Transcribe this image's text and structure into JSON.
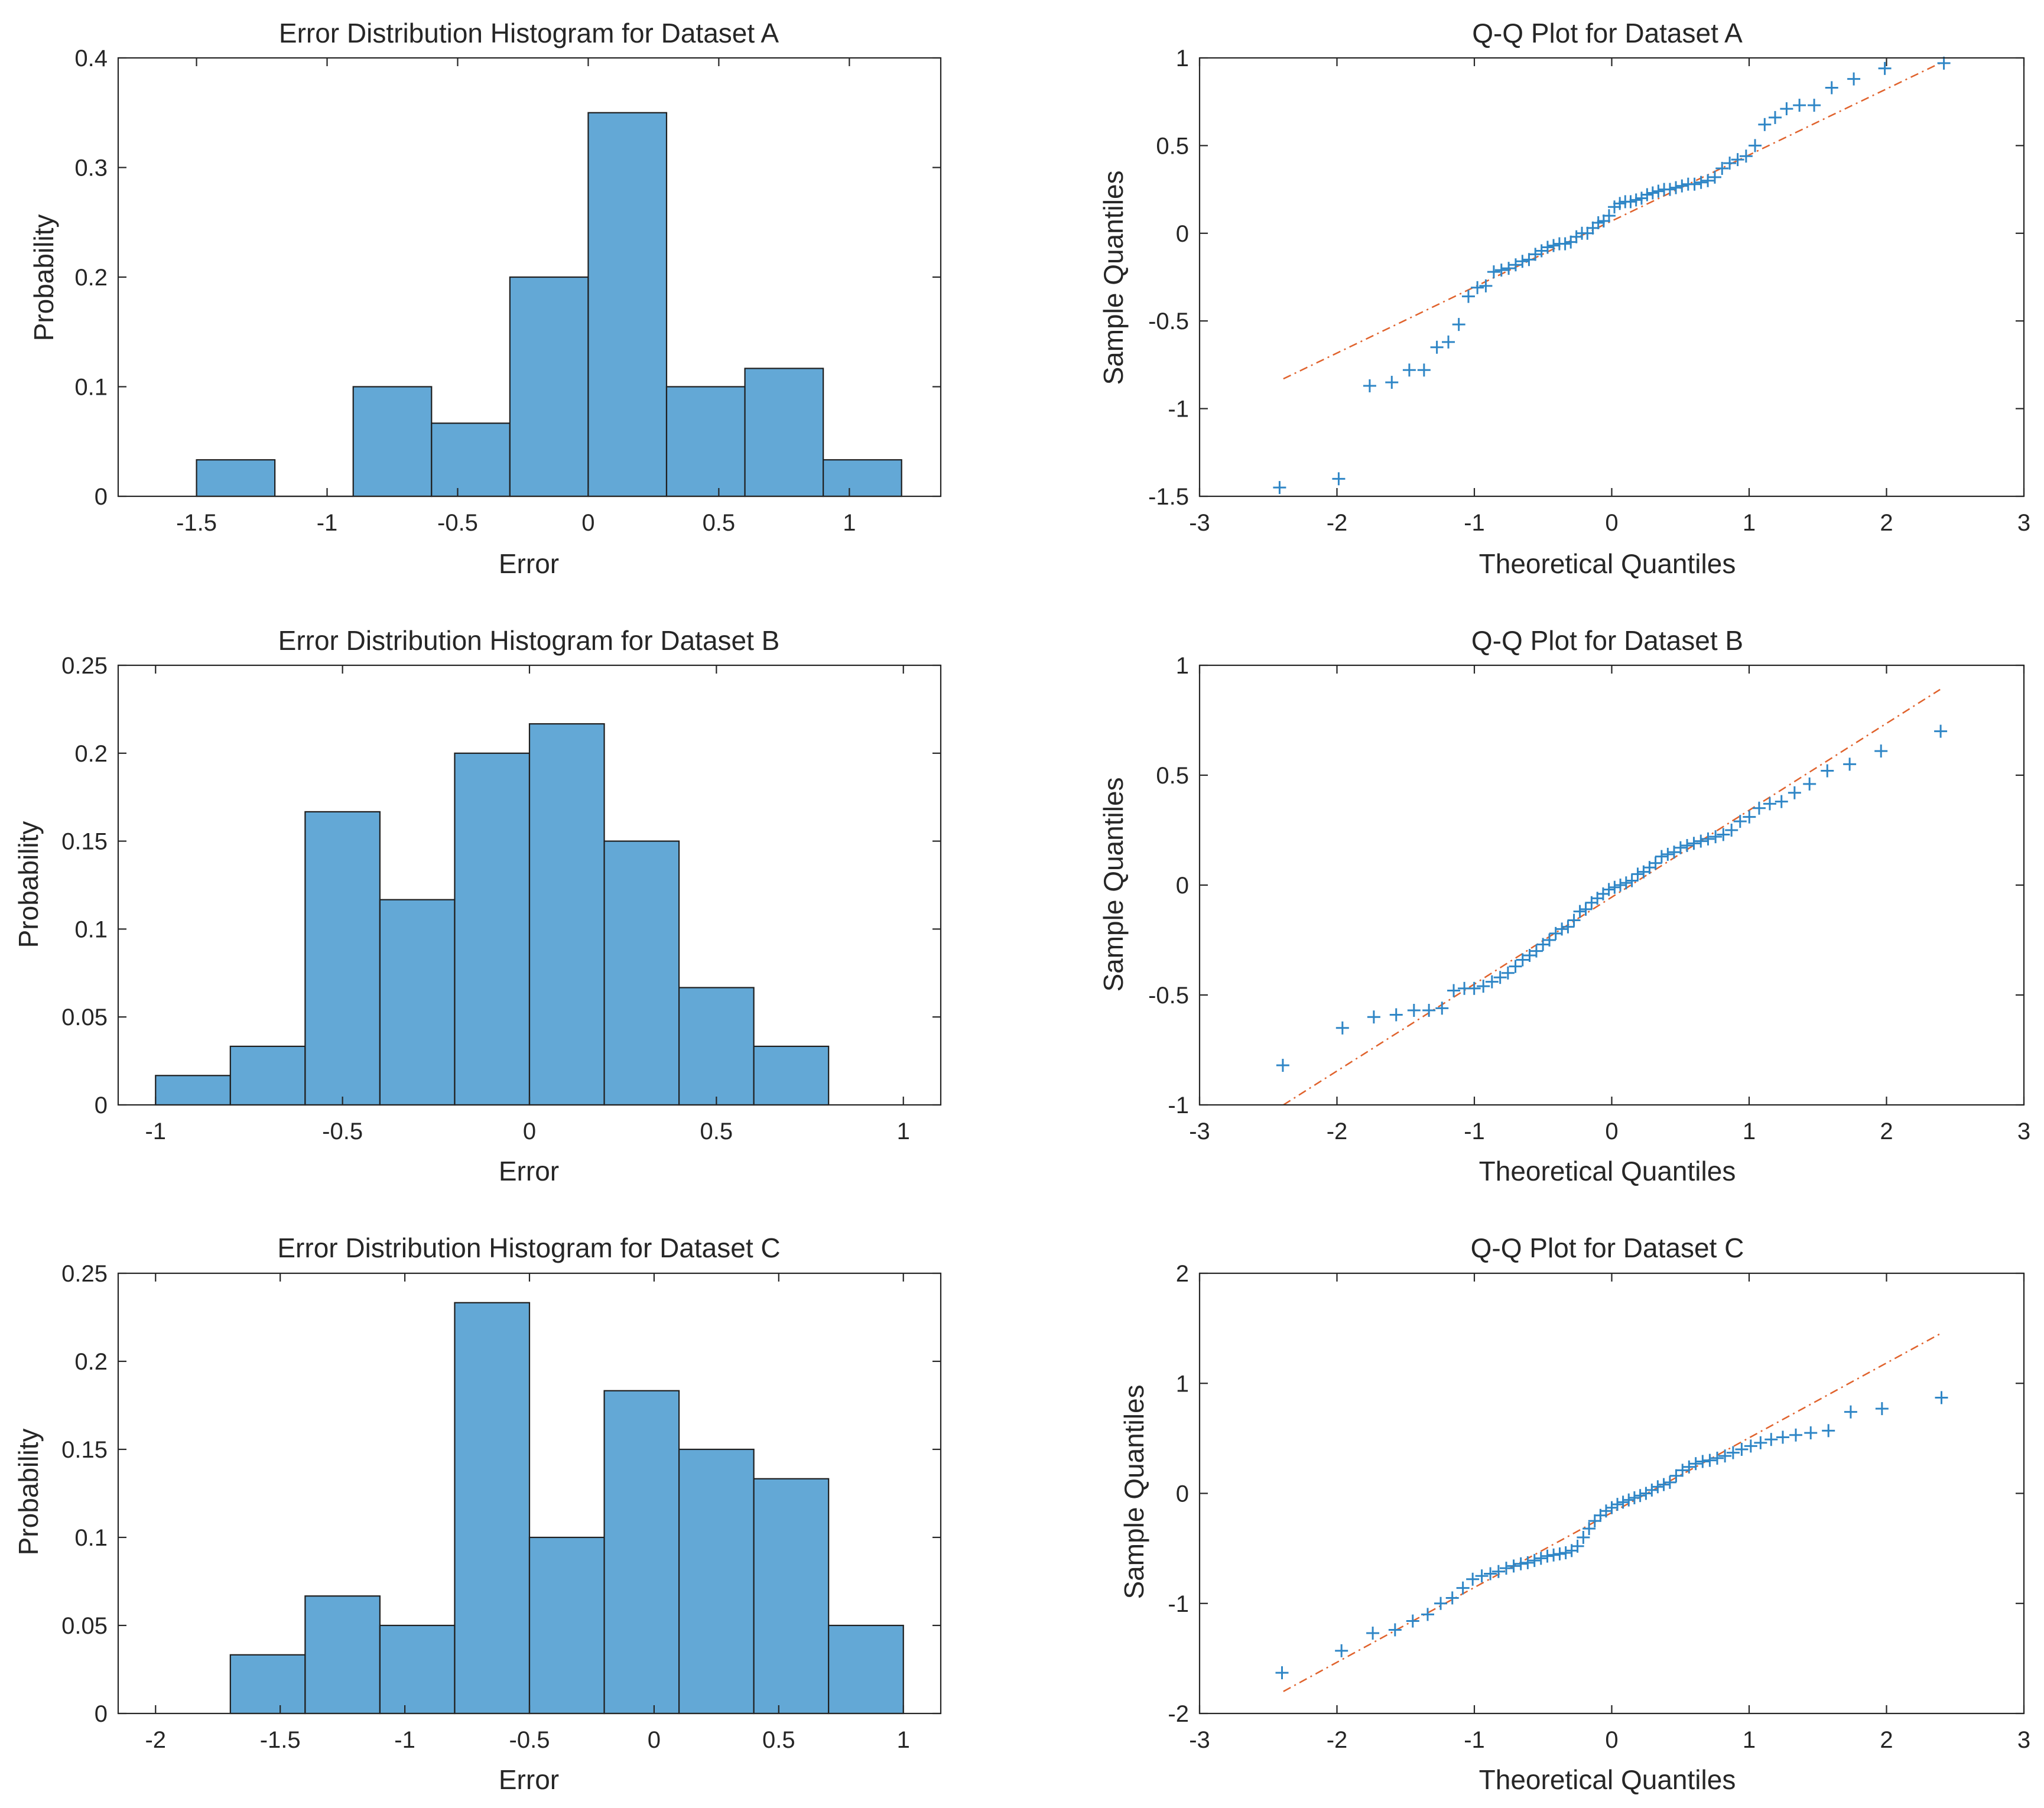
{
  "chart_data": [
    {
      "id": "hist-a",
      "type": "bar",
      "title": "Error Distribution Histogram for Dataset A",
      "xlabel": "Error",
      "ylabel": "Probability",
      "xlim": [
        -1.8,
        1.35
      ],
      "ylim": [
        0,
        0.4
      ],
      "xticks": [
        -1.5,
        -1,
        -0.5,
        0,
        0.5,
        1
      ],
      "xticklabels": [
        "-1.5",
        "-1",
        "-0.5",
        "0",
        "0.5",
        "1"
      ],
      "yticks": [
        0,
        0.1,
        0.2,
        0.3,
        0.4
      ],
      "yticklabels": [
        "0",
        "0.1",
        "0.2",
        "0.3",
        "0.4"
      ],
      "bin_edges": [
        -1.5,
        -1.2,
        -0.9,
        -0.6,
        -0.3,
        0,
        0.3,
        0.6,
        0.9,
        1.2
      ],
      "values": [
        0.0333,
        0,
        0.1,
        0.0667,
        0.2,
        0.35,
        0.1,
        0.1167,
        0.0333
      ]
    },
    {
      "id": "qq-a",
      "type": "scatter",
      "title": "Q-Q Plot for Dataset A",
      "xlabel": "Theoretical Quantiles",
      "ylabel": "Sample Quantiles",
      "xlim": [
        -3,
        3
      ],
      "ylim": [
        -1.5,
        1
      ],
      "xticks": [
        -3,
        -2,
        -1,
        0,
        1,
        2,
        3
      ],
      "xticklabels": [
        "-3",
        "-2",
        "-1",
        "0",
        "1",
        "2",
        "3"
      ],
      "yticks": [
        -1.5,
        -1,
        -0.5,
        0,
        0.5,
        1
      ],
      "yticklabels": [
        "-1.5",
        "-1",
        "-0.5",
        "0",
        "0.5",
        "1"
      ],
      "ref_line": {
        "x": [
          -2.39,
          2.39
        ],
        "y": [
          -0.83,
          0.97
        ]
      },
      "sample_quantiles": [
        -1.45,
        -1.4,
        -0.87,
        -0.85,
        -0.78,
        -0.78,
        -0.65,
        -0.62,
        -0.52,
        -0.36,
        -0.31,
        -0.3,
        -0.22,
        -0.21,
        -0.2,
        -0.18,
        -0.16,
        -0.15,
        -0.12,
        -0.1,
        -0.08,
        -0.07,
        -0.06,
        -0.06,
        -0.05,
        -0.02,
        0,
        0,
        0.03,
        0.06,
        0.07,
        0.1,
        0.15,
        0.17,
        0.18,
        0.18,
        0.19,
        0.2,
        0.22,
        0.23,
        0.24,
        0.25,
        0.25,
        0.26,
        0.27,
        0.28,
        0.28,
        0.29,
        0.3,
        0.32,
        0.37,
        0.4,
        0.42,
        0.44,
        0.5,
        0.62,
        0.66,
        0.71,
        0.73,
        0.73,
        0.83,
        0.88,
        0.94,
        0.97
      ]
    },
    {
      "id": "hist-b",
      "type": "bar",
      "title": "Error Distribution Histogram for Dataset B",
      "xlabel": "Error",
      "ylabel": "Probability",
      "xlim": [
        -1.1,
        1.1
      ],
      "ylim": [
        0,
        0.25
      ],
      "xticks": [
        -1,
        -0.5,
        0,
        0.5,
        1
      ],
      "xticklabels": [
        "-1",
        "-0.5",
        "0",
        "0.5",
        "1"
      ],
      "yticks": [
        0,
        0.05,
        0.1,
        0.15,
        0.2,
        0.25
      ],
      "yticklabels": [
        "0",
        "0.05",
        "0.1",
        "0.15",
        "0.2",
        "0.25"
      ],
      "bin_edges": [
        -1,
        -0.8,
        -0.6,
        -0.4,
        -0.2,
        0,
        0.2,
        0.4,
        0.6,
        0.8
      ],
      "values": [
        0.0167,
        0.0333,
        0.1667,
        0.1167,
        0.2,
        0.2167,
        0.15,
        0.0667,
        0.0333
      ]
    },
    {
      "id": "qq-b",
      "type": "scatter",
      "title": "Q-Q Plot for Dataset B",
      "xlabel": "Theoretical Quantiles",
      "ylabel": "Sample Quantiles",
      "xlim": [
        -3,
        3
      ],
      "ylim": [
        -1,
        1
      ],
      "xticks": [
        -3,
        -2,
        -1,
        0,
        1,
        2,
        3
      ],
      "xticklabels": [
        "-3",
        "-2",
        "-1",
        "0",
        "1",
        "2",
        "3"
      ],
      "yticks": [
        -1,
        -0.5,
        0,
        0.5,
        1
      ],
      "yticklabels": [
        "-1",
        "-0.5",
        "0",
        "0.5",
        "1"
      ],
      "ref_line": {
        "x": [
          -2.39,
          2.39
        ],
        "y": [
          -1.0,
          0.89
        ]
      },
      "sample_quantiles": [
        -0.82,
        -0.65,
        -0.6,
        -0.59,
        -0.57,
        -0.57,
        -0.56,
        -0.48,
        -0.47,
        -0.47,
        -0.46,
        -0.44,
        -0.42,
        -0.4,
        -0.37,
        -0.34,
        -0.32,
        -0.3,
        -0.27,
        -0.25,
        -0.22,
        -0.2,
        -0.19,
        -0.16,
        -0.12,
        -0.11,
        -0.08,
        -0.06,
        -0.04,
        -0.02,
        -0.01,
        0,
        0.01,
        0.02,
        0.05,
        0.06,
        0.08,
        0.1,
        0.13,
        0.14,
        0.15,
        0.17,
        0.18,
        0.19,
        0.2,
        0.21,
        0.22,
        0.23,
        0.25,
        0.29,
        0.31,
        0.35,
        0.37,
        0.38,
        0.42,
        0.46,
        0.52,
        0.55,
        0.61,
        0.7
      ]
    },
    {
      "id": "hist-c",
      "type": "bar",
      "title": "Error Distribution Histogram for Dataset C",
      "xlabel": "Error",
      "ylabel": "Probability",
      "xlim": [
        -2.15,
        1.15
      ],
      "ylim": [
        0,
        0.25
      ],
      "xticks": [
        -2,
        -1.5,
        -1,
        -0.5,
        0,
        0.5,
        1
      ],
      "xticklabels": [
        "-2",
        "-1.5",
        "-1",
        "-0.5",
        "0",
        "0.5",
        "1"
      ],
      "yticks": [
        0,
        0.05,
        0.1,
        0.15,
        0.2,
        0.25
      ],
      "yticklabels": [
        "0",
        "0.05",
        "0.1",
        "0.15",
        "0.2",
        "0.25"
      ],
      "bin_edges": [
        -1.7,
        -1.4,
        -1.1,
        -0.8,
        -0.5,
        -0.2,
        0.1,
        0.4,
        0.7,
        1.0
      ],
      "values": [
        0.0333,
        0.0667,
        0.05,
        0.2333,
        0.1,
        0.1833,
        0.15,
        0.1333,
        0.05
      ]
    },
    {
      "id": "qq-c",
      "type": "scatter",
      "title": "Q-Q Plot for Dataset C",
      "xlabel": "Theoretical Quantiles",
      "ylabel": "Sample Quantiles",
      "xlim": [
        -3,
        3
      ],
      "ylim": [
        -2,
        2
      ],
      "xticks": [
        -3,
        -2,
        -1,
        0,
        1,
        2,
        3
      ],
      "xticklabels": [
        "-3",
        "-2",
        "-1",
        "0",
        "1",
        "2",
        "3"
      ],
      "yticks": [
        -2,
        -1,
        0,
        1,
        2
      ],
      "yticklabels": [
        "-2",
        "-1",
        "0",
        "1",
        "2"
      ],
      "ref_line": {
        "x": [
          -2.39,
          2.39
        ],
        "y": [
          -1.8,
          1.45
        ]
      },
      "sample_quantiles": [
        -1.63,
        -1.43,
        -1.27,
        -1.24,
        -1.16,
        -1.1,
        -1.0,
        -0.95,
        -0.86,
        -0.78,
        -0.75,
        -0.73,
        -0.71,
        -0.68,
        -0.66,
        -0.64,
        -0.63,
        -0.61,
        -0.59,
        -0.57,
        -0.56,
        -0.55,
        -0.54,
        -0.52,
        -0.48,
        -0.4,
        -0.32,
        -0.25,
        -0.2,
        -0.16,
        -0.13,
        -0.1,
        -0.08,
        -0.06,
        -0.04,
        -0.02,
        0,
        0.03,
        0.06,
        0.08,
        0.1,
        0.16,
        0.21,
        0.24,
        0.27,
        0.29,
        0.3,
        0.32,
        0.34,
        0.37,
        0.4,
        0.43,
        0.46,
        0.49,
        0.51,
        0.53,
        0.55,
        0.57,
        0.74,
        0.77,
        0.87
      ]
    }
  ]
}
